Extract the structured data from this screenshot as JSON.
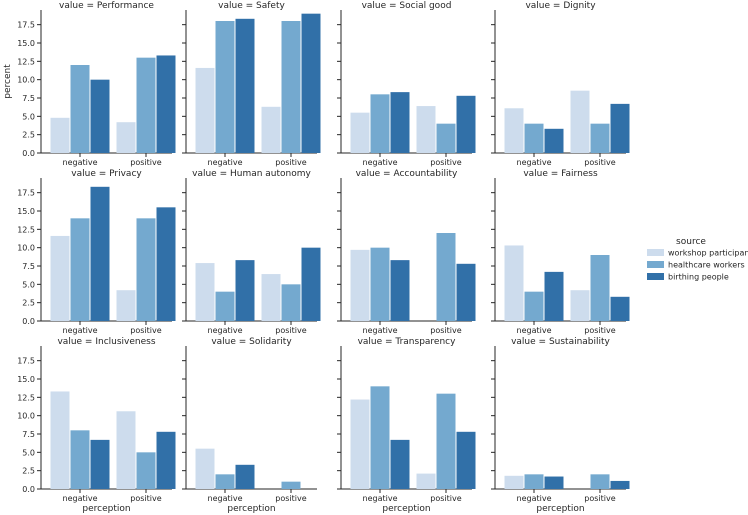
{
  "chart_data": {
    "type": "bar",
    "x_label": "perception",
    "y_label": "percent",
    "categories": [
      "negative",
      "positive"
    ],
    "ylim": [
      0,
      19.5
    ],
    "yticks": [
      "0.0",
      "2.5",
      "5.0",
      "7.5",
      "10.0",
      "12.5",
      "15.0",
      "17.5"
    ],
    "legend": {
      "title": "source",
      "position": "right",
      "items": [
        {
          "name": "workshop participants",
          "color": "#cddced"
        },
        {
          "name": "healthcare workers",
          "color": "#74a9cf"
        },
        {
          "name": "birthing people",
          "color": "#3170a8"
        }
      ]
    },
    "facets": [
      {
        "title": "value = Performance",
        "series": [
          [
            4.8,
            4.2
          ],
          [
            12.0,
            13.0
          ],
          [
            10.0,
            13.3
          ]
        ]
      },
      {
        "title": "value = Safety",
        "series": [
          [
            11.6,
            6.3
          ],
          [
            18.0,
            18.0
          ],
          [
            18.3,
            19.0
          ]
        ]
      },
      {
        "title": "value = Social good",
        "series": [
          [
            5.5,
            6.4
          ],
          [
            8.0,
            4.0
          ],
          [
            8.3,
            7.8
          ]
        ]
      },
      {
        "title": "value = Dignity",
        "series": [
          [
            6.1,
            8.5
          ],
          [
            4.0,
            4.0
          ],
          [
            3.3,
            6.7
          ]
        ]
      },
      {
        "title": "value = Privacy",
        "series": [
          [
            11.6,
            4.2
          ],
          [
            14.0,
            14.0
          ],
          [
            18.3,
            15.5
          ]
        ]
      },
      {
        "title": "value = Human autonomy",
        "series": [
          [
            7.9,
            6.4
          ],
          [
            4.0,
            5.0
          ],
          [
            8.3,
            10.0
          ]
        ]
      },
      {
        "title": "value = Accountability",
        "series": [
          [
            9.7,
            0
          ],
          [
            10.0,
            12.0
          ],
          [
            8.3,
            7.8
          ]
        ]
      },
      {
        "title": "value = Fairness",
        "series": [
          [
            10.3,
            4.2
          ],
          [
            4.0,
            9.0
          ],
          [
            6.7,
            3.3
          ]
        ]
      },
      {
        "title": "value = Inclusiveness",
        "series": [
          [
            13.3,
            10.6
          ],
          [
            8.0,
            5.0
          ],
          [
            6.7,
            7.8
          ]
        ]
      },
      {
        "title": "value = Solidarity",
        "series": [
          [
            5.5,
            0
          ],
          [
            2.0,
            1.0
          ],
          [
            3.3,
            0
          ]
        ]
      },
      {
        "title": "value = Transparency",
        "series": [
          [
            12.2,
            2.1
          ],
          [
            14.0,
            13.0
          ],
          [
            6.7,
            7.8
          ]
        ]
      },
      {
        "title": "value = Sustainability",
        "series": [
          [
            1.8,
            0
          ],
          [
            2.0,
            2.0
          ],
          [
            1.7,
            1.1
          ]
        ]
      }
    ]
  }
}
